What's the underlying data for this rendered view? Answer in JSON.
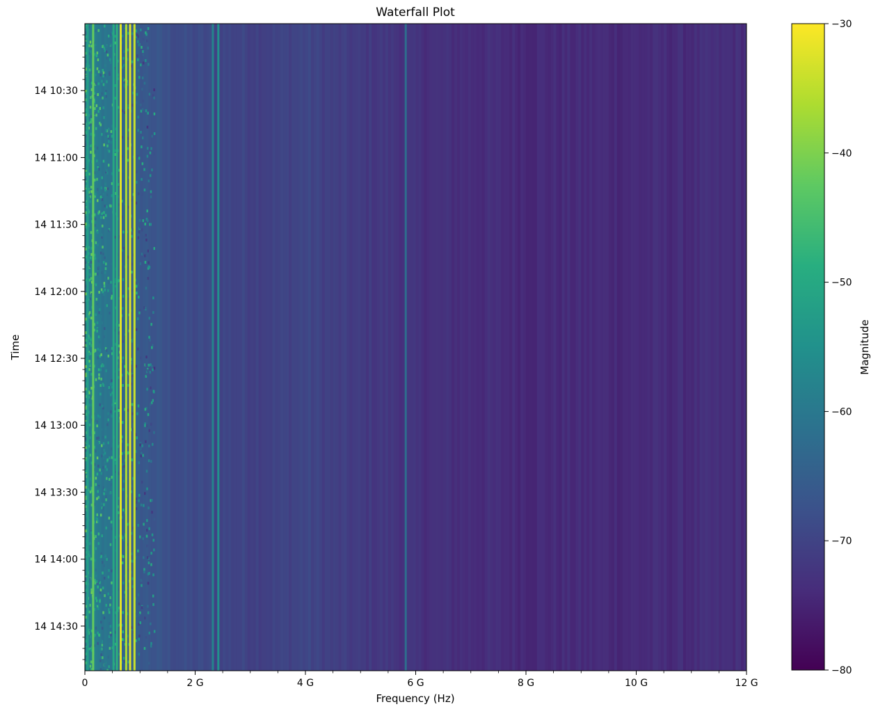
{
  "chart_data": {
    "type": "heatmap",
    "title": "Waterfall Plot",
    "xlabel": "Frequency (Hz)",
    "ylabel": "Time",
    "xlim": [
      0,
      12000000000
    ],
    "x_ticks": [
      0,
      2000000000,
      4000000000,
      6000000000,
      8000000000,
      10000000000,
      12000000000
    ],
    "x_tick_labels": [
      "0",
      "2 G",
      "4 G",
      "6 G",
      "8 G",
      "10 G",
      "12 G"
    ],
    "ylim": [
      "14 10:00",
      "14 14:50"
    ],
    "y_ticks": [
      "14 10:30",
      "14 11:00",
      "14 11:30",
      "14 12:00",
      "14 12:30",
      "14 13:00",
      "14 13:30",
      "14 14:00",
      "14 14:30"
    ],
    "y_tick_labels": [
      "14 10:30",
      "14 11:00",
      "14 11:30",
      "14 12:00",
      "14 12:30",
      "14 13:00",
      "14 13:30",
      "14 14:00",
      "14 14:30"
    ],
    "colorbar": {
      "label": "Magnitude",
      "colormap": "viridis",
      "range": [
        -80,
        -30
      ],
      "ticks": [
        -30,
        -40,
        -50,
        -60,
        -70,
        -80
      ],
      "tick_labels": [
        "−30",
        "−40",
        "−50",
        "−60",
        "−70",
        "−80"
      ]
    },
    "baseline_profile": {
      "frequency_ghz": [
        0,
        0.5,
        1.0,
        1.5,
        2.0,
        2.5,
        3.0,
        3.5,
        4.0,
        4.5,
        5.0,
        5.5,
        6.0,
        7.0,
        8.0,
        9.0,
        10.0,
        11.0,
        12.0
      ],
      "magnitude": [
        -58,
        -62,
        -66,
        -68,
        -69,
        -69.5,
        -70,
        -70.2,
        -69.5,
        -70.8,
        -71.5,
        -72,
        -73,
        -73.5,
        -74,
        -74,
        -74,
        -73.8,
        -73.5
      ]
    },
    "strong_lines": [
      {
        "frequency_ghz": 0.05,
        "magnitude": -52
      },
      {
        "frequency_ghz": 0.15,
        "magnitude": -42
      },
      {
        "frequency_ghz": 0.52,
        "magnitude": -50
      },
      {
        "frequency_ghz": 0.58,
        "magnitude": -48
      },
      {
        "frequency_ghz": 0.65,
        "magnitude": -32
      },
      {
        "frequency_ghz": 0.75,
        "magnitude": -36
      },
      {
        "frequency_ghz": 0.82,
        "magnitude": -32
      },
      {
        "frequency_ghz": 0.9,
        "magnitude": -34
      },
      {
        "frequency_ghz": 2.32,
        "magnitude": -58
      },
      {
        "frequency_ghz": 2.42,
        "magnitude": -55
      },
      {
        "frequency_ghz": 5.82,
        "magnitude": -62
      }
    ]
  }
}
